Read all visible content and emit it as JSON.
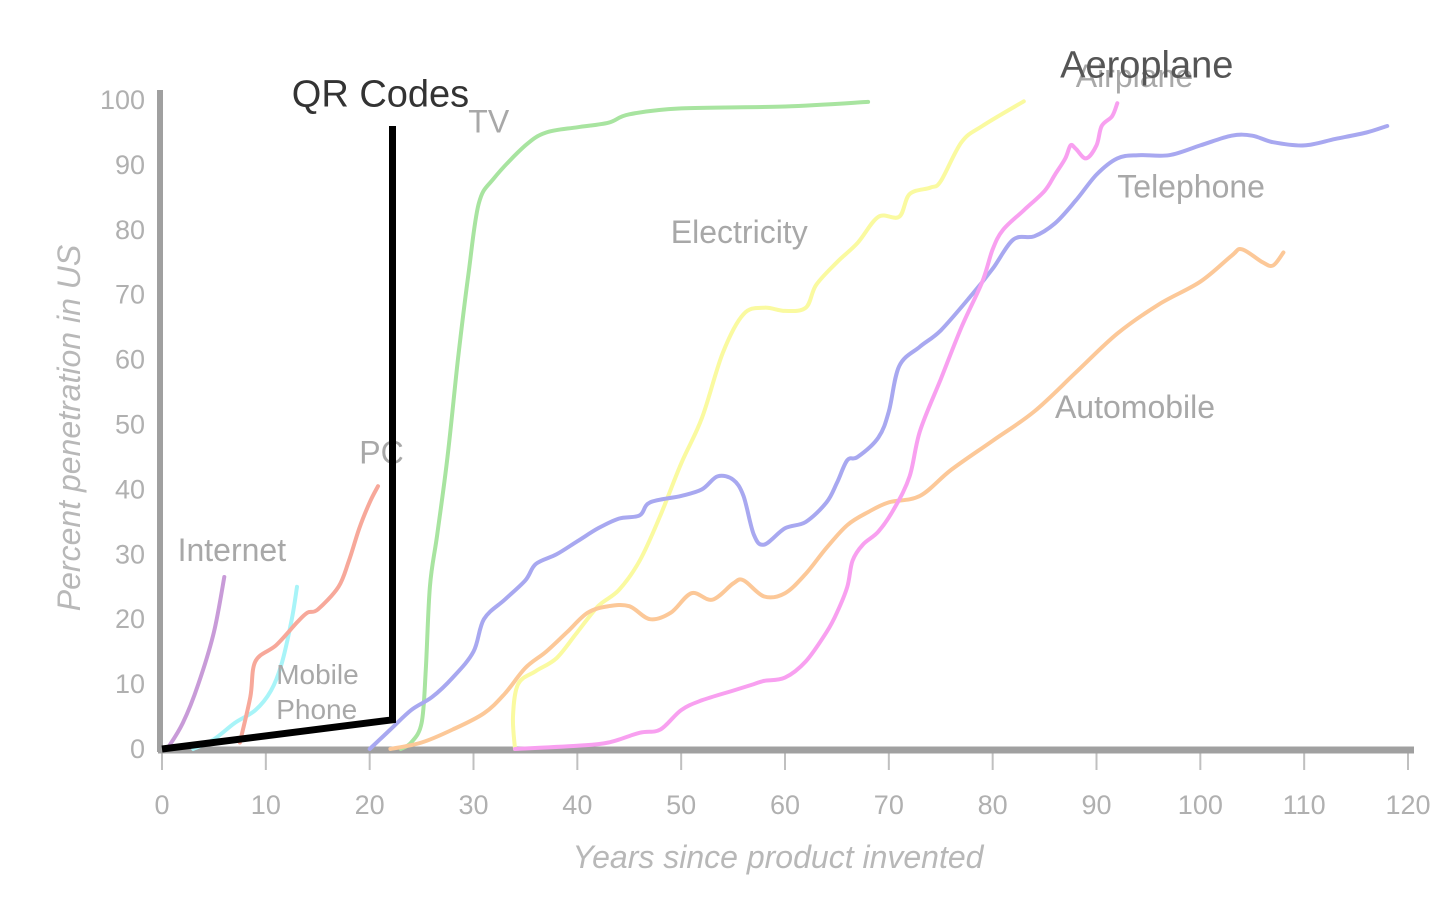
{
  "chart_data": {
    "type": "line",
    "xlabel": "Years since product invented",
    "ylabel": "Percent penetration in US",
    "xlim": [
      0,
      120
    ],
    "ylim": [
      0,
      100
    ],
    "xticks": [
      0,
      10,
      20,
      30,
      40,
      50,
      60,
      70,
      80,
      90,
      100,
      110,
      120
    ],
    "yticks": [
      0,
      10,
      20,
      30,
      40,
      50,
      60,
      70,
      80,
      90,
      100
    ],
    "series": [
      {
        "name": "Internet",
        "label": "Internet",
        "color": "#c89bd8",
        "label_at": [
          1.5,
          29
        ],
        "points": [
          [
            0.5,
            0
          ],
          [
            2,
            4
          ],
          [
            3.5,
            10
          ],
          [
            5,
            18
          ],
          [
            6,
            26.5
          ]
        ]
      },
      {
        "name": "Mobile Phone",
        "label_lines": [
          "Mobile",
          "Phone"
        ],
        "color": "#a8f4f8",
        "label_at": [
          11,
          10
        ],
        "points": [
          [
            3,
            0
          ],
          [
            5,
            1.5
          ],
          [
            7,
            4
          ],
          [
            9,
            6
          ],
          [
            10.5,
            9
          ],
          [
            11.5,
            13
          ],
          [
            12.5,
            20
          ],
          [
            13,
            25
          ]
        ]
      },
      {
        "name": "PC",
        "label": "PC",
        "color": "#f7a89a",
        "label_at": [
          19,
          44
        ],
        "points": [
          [
            7.5,
            1
          ],
          [
            8.5,
            8
          ],
          [
            9,
            13.5
          ],
          [
            11,
            16
          ],
          [
            13,
            19.5
          ],
          [
            14,
            21
          ],
          [
            15,
            21.5
          ],
          [
            17,
            25
          ],
          [
            18,
            29
          ],
          [
            19,
            34
          ],
          [
            20,
            38
          ],
          [
            20.8,
            40.5
          ]
        ]
      },
      {
        "name": "TV",
        "label": "TV",
        "color": "#a8e4a0",
        "label_at": [
          29.5,
          95
        ],
        "points": [
          [
            23,
            0
          ],
          [
            24,
            1
          ],
          [
            25,
            4
          ],
          [
            25.4,
            12
          ],
          [
            25.8,
            25
          ],
          [
            26.5,
            33
          ],
          [
            27.5,
            45
          ],
          [
            28.5,
            60
          ],
          [
            29.5,
            73
          ],
          [
            30.5,
            84
          ],
          [
            32,
            88
          ],
          [
            35,
            93
          ],
          [
            37,
            95
          ],
          [
            40,
            95.8
          ],
          [
            43,
            96.5
          ],
          [
            45,
            97.8
          ],
          [
            50,
            98.7
          ],
          [
            60,
            99
          ],
          [
            68,
            99.7
          ]
        ]
      },
      {
        "name": "Electricity",
        "label": "Electricity",
        "color": "#fafaa0",
        "label_at": [
          49,
          78
        ],
        "points": [
          [
            34,
            0
          ],
          [
            33.8,
            5
          ],
          [
            34.3,
            10
          ],
          [
            36,
            12
          ],
          [
            38,
            14
          ],
          [
            40,
            18
          ],
          [
            42,
            22
          ],
          [
            44,
            24.5
          ],
          [
            46,
            29
          ],
          [
            48,
            36
          ],
          [
            50,
            44
          ],
          [
            52,
            51
          ],
          [
            54,
            61
          ],
          [
            56,
            67
          ],
          [
            58,
            68
          ],
          [
            60,
            67.5
          ],
          [
            62,
            68
          ],
          [
            63,
            71.5
          ],
          [
            65,
            75
          ],
          [
            67,
            78
          ],
          [
            69,
            82
          ],
          [
            71,
            82
          ],
          [
            72,
            85.5
          ],
          [
            74,
            86.5
          ],
          [
            75,
            87.5
          ],
          [
            77,
            93.5
          ],
          [
            79,
            96
          ],
          [
            83,
            99.8
          ]
        ]
      },
      {
        "name": "Telephone",
        "label": "Telephone",
        "color": "#a8a8f0",
        "label_at": [
          92,
          85
        ],
        "points": [
          [
            20,
            0
          ],
          [
            22,
            3
          ],
          [
            24,
            6
          ],
          [
            26,
            8
          ],
          [
            28,
            11
          ],
          [
            30,
            15
          ],
          [
            31,
            20
          ],
          [
            33,
            23
          ],
          [
            35,
            26
          ],
          [
            36,
            28.5
          ],
          [
            38,
            30
          ],
          [
            40,
            32
          ],
          [
            42,
            34
          ],
          [
            44,
            35.5
          ],
          [
            46,
            36
          ],
          [
            47,
            38
          ],
          [
            50,
            39
          ],
          [
            52,
            40
          ],
          [
            53.5,
            42
          ],
          [
            55,
            41.5
          ],
          [
            56,
            39
          ],
          [
            57,
            33
          ],
          [
            58,
            31.5
          ],
          [
            60,
            34
          ],
          [
            62,
            35
          ],
          [
            64,
            38
          ],
          [
            65,
            41
          ],
          [
            66,
            44.5
          ],
          [
            67,
            45
          ],
          [
            69,
            48
          ],
          [
            70,
            52
          ],
          [
            71,
            59
          ],
          [
            73,
            62
          ],
          [
            75,
            64.5
          ],
          [
            78,
            70
          ],
          [
            80,
            74
          ],
          [
            82,
            78.5
          ],
          [
            84,
            79
          ],
          [
            86,
            81
          ],
          [
            88,
            84.5
          ],
          [
            90,
            88.5
          ],
          [
            92,
            91
          ],
          [
            94,
            91.5
          ],
          [
            97,
            91.5
          ],
          [
            100,
            93
          ],
          [
            103,
            94.5
          ],
          [
            105,
            94.5
          ],
          [
            107,
            93.5
          ],
          [
            110,
            93
          ],
          [
            113,
            94
          ],
          [
            116,
            95
          ],
          [
            118,
            96
          ]
        ]
      },
      {
        "name": "Automobile",
        "label": "Automobile",
        "color": "#fcc898",
        "label_at": [
          86,
          51
        ],
        "points": [
          [
            22,
            0
          ],
          [
            25,
            1
          ],
          [
            28,
            3
          ],
          [
            31,
            5.5
          ],
          [
            33,
            8.5
          ],
          [
            35,
            12.5
          ],
          [
            37,
            15
          ],
          [
            39,
            18
          ],
          [
            41,
            21
          ],
          [
            43,
            22
          ],
          [
            45,
            22
          ],
          [
            47,
            20
          ],
          [
            49,
            21
          ],
          [
            51,
            24
          ],
          [
            53,
            23
          ],
          [
            55,
            25.5
          ],
          [
            56,
            26
          ],
          [
            58,
            23.5
          ],
          [
            60,
            24
          ],
          [
            62,
            27
          ],
          [
            64,
            31
          ],
          [
            66,
            34.5
          ],
          [
            68,
            36.5
          ],
          [
            70,
            38
          ],
          [
            73,
            39
          ],
          [
            76,
            43
          ],
          [
            80,
            47.5
          ],
          [
            84,
            52
          ],
          [
            88,
            58
          ],
          [
            92,
            64
          ],
          [
            96,
            68.5
          ],
          [
            100,
            72
          ],
          [
            103,
            76
          ],
          [
            104,
            77
          ],
          [
            106,
            75
          ],
          [
            107,
            74.5
          ],
          [
            108,
            76.5
          ]
        ]
      },
      {
        "name": "Airplane",
        "label": "Airplane",
        "color": "#f8a0f0",
        "label_at": [
          88,
          102
        ],
        "points": [
          [
            34,
            0
          ],
          [
            40,
            0.5
          ],
          [
            43,
            1
          ],
          [
            46,
            2.5
          ],
          [
            48,
            3
          ],
          [
            50,
            6
          ],
          [
            52,
            7.5
          ],
          [
            55,
            9
          ],
          [
            57,
            10
          ],
          [
            58,
            10.5
          ],
          [
            60,
            11
          ],
          [
            62,
            13.5
          ],
          [
            64,
            18
          ],
          [
            65,
            21
          ],
          [
            66,
            25
          ],
          [
            66.5,
            29
          ],
          [
            67.5,
            31.5
          ],
          [
            69,
            33.5
          ],
          [
            70.5,
            37
          ],
          [
            72,
            42
          ],
          [
            73,
            49
          ],
          [
            75,
            57
          ],
          [
            77,
            65
          ],
          [
            79,
            72
          ],
          [
            80,
            77
          ],
          [
            81,
            80
          ],
          [
            83,
            83
          ],
          [
            85,
            86
          ],
          [
            86,
            88.5
          ],
          [
            87,
            91
          ],
          [
            87.5,
            93
          ],
          [
            88,
            92.5
          ],
          [
            89,
            91
          ],
          [
            90,
            93
          ],
          [
            90.5,
            96
          ],
          [
            91.5,
            97.5
          ],
          [
            92,
            99.5
          ]
        ]
      }
    ],
    "overlays": [
      {
        "name": "QR Codes",
        "label": "QR Codes",
        "color": "#000000",
        "label_at": [
          12.5,
          99
        ],
        "points": [
          [
            0,
            0
          ],
          [
            22.2,
            4.5
          ],
          [
            22.2,
            96
          ]
        ]
      },
      {
        "name": "Aeroplane",
        "label": "Aeroplane",
        "color": "#555555",
        "label_at": [
          86.5,
          103.5
        ]
      }
    ]
  }
}
